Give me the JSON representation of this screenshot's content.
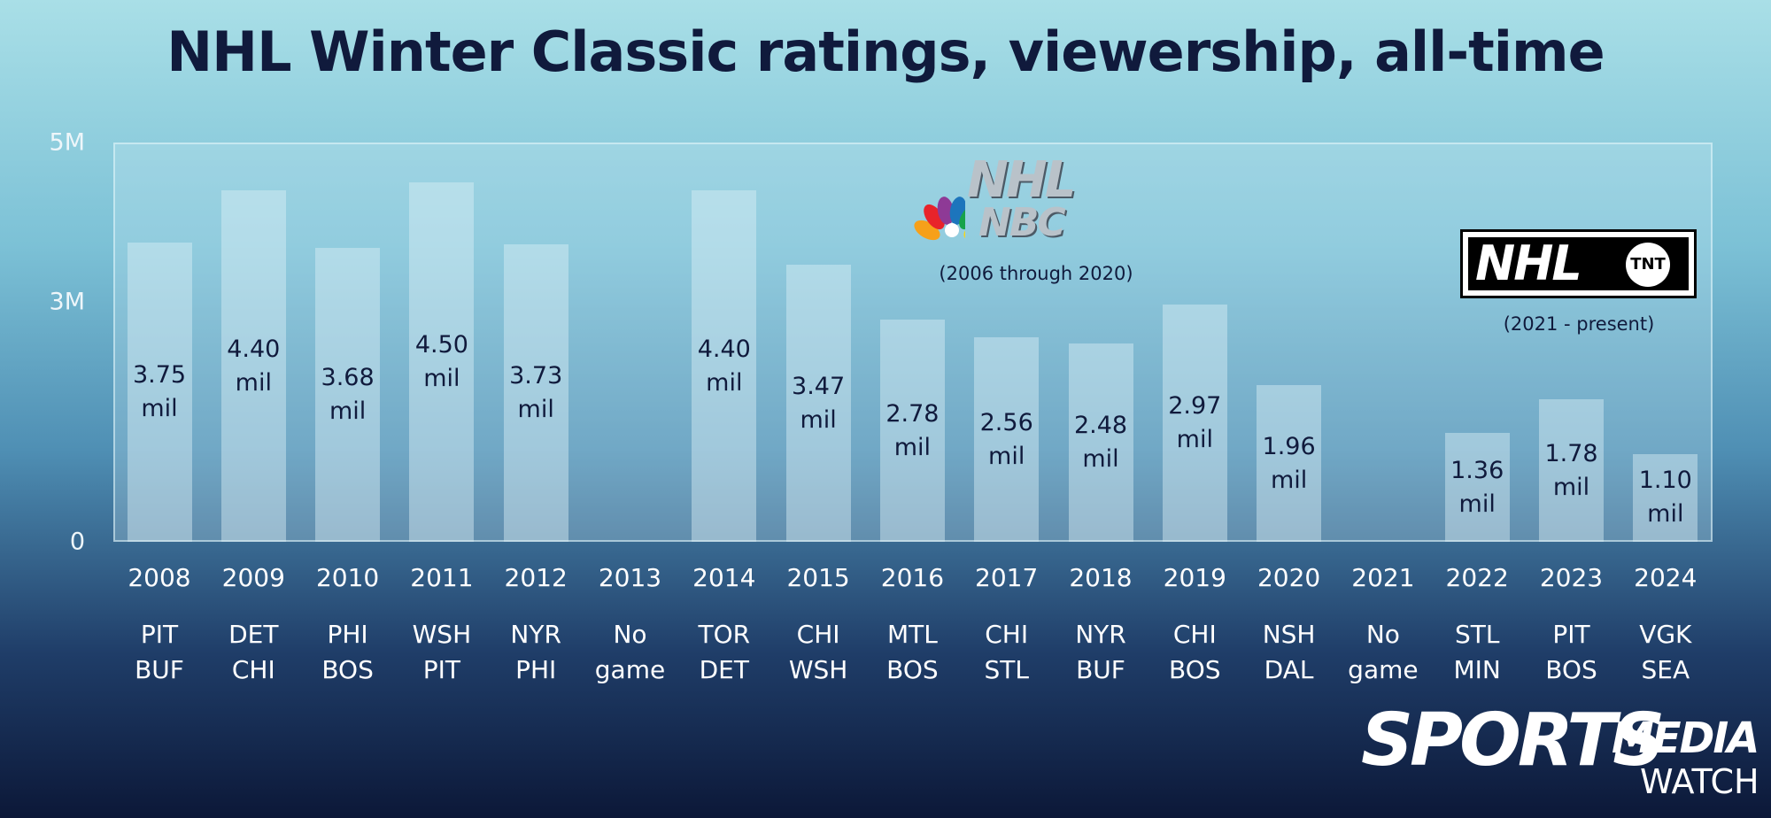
{
  "chart_data": {
    "type": "bar",
    "title": "NHL Winter Classic ratings, viewership, all-time",
    "categories": [
      "2008",
      "2009",
      "2010",
      "2011",
      "2012",
      "2013",
      "2014",
      "2015",
      "2016",
      "2017",
      "2018",
      "2019",
      "2020",
      "2021",
      "2022",
      "2023",
      "2024"
    ],
    "matchups": [
      "PIT BUF",
      "DET CHI",
      "PHI BOS",
      "WSH PIT",
      "NYR PHI",
      "No game",
      "TOR DET",
      "CHI WSH",
      "MTL BOS",
      "CHI STL",
      "NYR BUF",
      "CHI BOS",
      "NSH DAL",
      "No game",
      "STL MIN",
      "PIT BOS",
      "VGK SEA"
    ],
    "values": [
      3.75,
      4.4,
      3.68,
      4.5,
      3.73,
      null,
      4.4,
      3.47,
      2.78,
      2.56,
      2.48,
      2.97,
      1.96,
      null,
      1.36,
      1.78,
      1.1
    ],
    "value_labels": [
      "3.75 mil",
      "4.40 mil",
      "3.68 mil",
      "4.50 mil",
      "3.73 mil",
      null,
      "4.40 mil",
      "3.47 mil",
      "2.78 mil",
      "2.56 mil",
      "2.48 mil",
      "2.97 mil",
      "1.96 mil",
      null,
      "1.36 mil",
      "1.78 mil",
      "1.10 mil"
    ],
    "color": "rgba(220,240,246,0.45)",
    "ylim": [
      0,
      5
    ],
    "yticks": [
      0,
      {
        "value": 3,
        "label": "3M"
      },
      {
        "value": 5,
        "label": "5M"
      }
    ],
    "grid": false,
    "annotations": {
      "nbc_logo_top": "NHL",
      "nbc_logo_bottom": "NBC",
      "nbc_note": "(2006 through 2020)",
      "tnt_logo_left": "NHL",
      "tnt_logo_right": "TNT",
      "tnt_note": "(2021 - present)",
      "brand_main": "SPORTS",
      "brand_top": "MEDIA",
      "brand_bottom": "WATCH"
    }
  }
}
